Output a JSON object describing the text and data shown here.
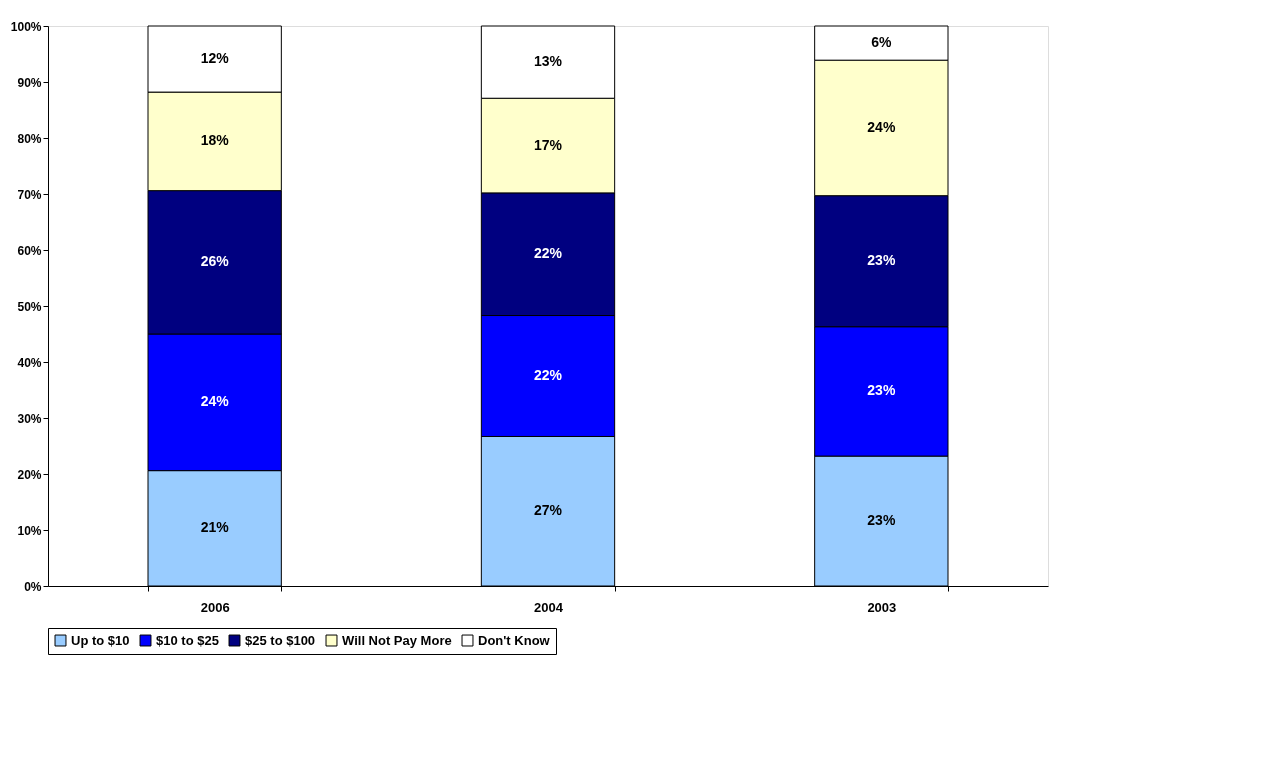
{
  "chart_data": {
    "type": "bar",
    "stacked": true,
    "categories": [
      "2006",
      "2004",
      "2003"
    ],
    "series": [
      {
        "name": "Up to $10",
        "color": "#99ccff",
        "values": [
          20.6,
          26.7,
          23.2
        ],
        "value_labels": [
          "21%",
          "27%",
          "23%"
        ]
      },
      {
        "name": "$10 to $25",
        "color": "#0000ff",
        "values": [
          24.4,
          21.6,
          23.1
        ],
        "value_labels": [
          "24%",
          "22%",
          "23%"
        ]
      },
      {
        "name": "$25 to $100",
        "color": "#000080",
        "values": [
          25.6,
          21.9,
          23.4
        ],
        "value_labels": [
          "26%",
          "22%",
          "23%"
        ]
      },
      {
        "name": "Will Not Pay More",
        "color": "#ffffcc",
        "values": [
          17.6,
          16.9,
          24.2
        ],
        "value_labels": [
          "18%",
          "17%",
          "24%"
        ]
      },
      {
        "name": "Don't Know",
        "color": "#ffffff",
        "values": [
          11.8,
          12.9,
          6.1
        ],
        "value_labels": [
          "12%",
          "13%",
          "6%"
        ]
      }
    ],
    "ylim": [
      0,
      100
    ],
    "yticks": [
      {
        "value": 0,
        "label": "0%"
      },
      {
        "value": 10,
        "label": "10%"
      },
      {
        "value": 20,
        "label": "20%"
      },
      {
        "value": 30,
        "label": "30%"
      },
      {
        "value": 40,
        "label": "40%"
      },
      {
        "value": 50,
        "label": "50%"
      },
      {
        "value": 60,
        "label": "60%"
      },
      {
        "value": 70,
        "label": "70%"
      },
      {
        "value": 80,
        "label": "80%"
      },
      {
        "value": 90,
        "label": "90%"
      },
      {
        "value": 100,
        "label": "100%"
      }
    ],
    "grid": false,
    "legend": "bottom"
  }
}
